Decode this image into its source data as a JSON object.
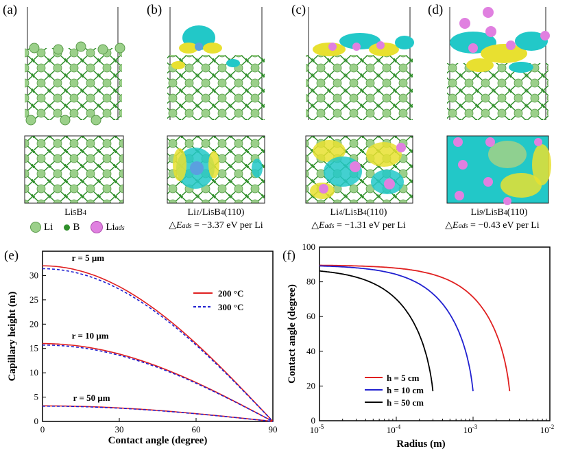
{
  "panels": {
    "a": {
      "label": "(a)",
      "caption": "Li5B4",
      "caption_parts": [
        "Li",
        "5",
        "B",
        "4"
      ]
    },
    "b": {
      "label": "(b)",
      "caption_parts": [
        "Li",
        "1",
        "/Li",
        "5",
        "B",
        "4",
        "(110)"
      ],
      "energy": "= −3.37 eV per Li"
    },
    "c": {
      "label": "(c)",
      "caption_parts": [
        "Li",
        "4",
        "/Li",
        "5",
        "B",
        "4",
        "(110)"
      ],
      "energy": "= −1.31 eV per Li"
    },
    "d": {
      "label": "(d)",
      "caption_parts": [
        "Li",
        "9",
        "/Li",
        "5",
        "B",
        "4",
        "(110)"
      ],
      "energy": "= −0.43 eV per Li"
    },
    "e": {
      "label": "(e)"
    },
    "f": {
      "label": "(f)"
    }
  },
  "energy_prefix": "△E",
  "energy_sub": "ads",
  "legend": {
    "li": "Li",
    "b": "B",
    "liads": "Li",
    "liads_sub": "ads"
  },
  "colors": {
    "li": "#9bd08a",
    "b": "#2f8f2a",
    "liads": "#e080e0",
    "cyan": "#22c8c8",
    "yellow": "#e8e030",
    "red": "#e02020",
    "blue": "#2020d0",
    "black": "#000000"
  },
  "chart_data": [
    {
      "id": "e",
      "type": "line",
      "xlabel": "Contact angle (degree)",
      "ylabel": "Capillary height (m)",
      "xlim": [
        0,
        90
      ],
      "ylim": [
        0,
        35
      ],
      "xticks": [
        0,
        30,
        60,
        90
      ],
      "yticks": [
        0,
        5,
        10,
        15,
        20,
        25,
        30
      ],
      "legend": [
        "200 °C",
        "300 °C"
      ],
      "annotations": [
        "r = 5 μm",
        "r = 10 μm",
        "r = 50 μm"
      ],
      "series": [
        {
          "name": "200 °C, r = 5 μm",
          "style": "solid",
          "color": "#e02020",
          "h0": 32.0
        },
        {
          "name": "300 °C, r = 5 μm",
          "style": "dashed",
          "color": "#2020d0",
          "h0": 31.4
        },
        {
          "name": "200 °C, r = 10 μm",
          "style": "solid",
          "color": "#e02020",
          "h0": 16.0
        },
        {
          "name": "300 °C, r = 10 μm",
          "style": "dashed",
          "color": "#2020d0",
          "h0": 15.7
        },
        {
          "name": "200 °C, r = 50 μm",
          "style": "solid",
          "color": "#e02020",
          "h0": 3.2
        },
        {
          "name": "300 °C, r = 50 μm",
          "style": "dashed",
          "color": "#2020d0",
          "h0": 3.14
        }
      ]
    },
    {
      "id": "f",
      "type": "line",
      "xlabel": "Radius (m)",
      "ylabel": "Contact angle (degree)",
      "xscale": "log",
      "xlim_exp": [
        -5,
        -2
      ],
      "ylim": [
        0,
        100
      ],
      "xtick_labels": [
        "10",
        "10",
        "10",
        "10"
      ],
      "xtick_exps": [
        "-5",
        "-4",
        "-3",
        "-2"
      ],
      "yticks": [
        0,
        20,
        40,
        60,
        80,
        100
      ],
      "legend": [
        "h = 5 cm",
        "h = 10 cm",
        "h = 50 cm"
      ],
      "series": [
        {
          "name": "h = 5 cm",
          "color": "#e02020",
          "rmax": 0.003,
          "theta0": 89.7
        },
        {
          "name": "h = 10 cm",
          "color": "#2020d0",
          "rmax": 0.001,
          "theta0": 89.7
        },
        {
          "name": "h = 50 cm",
          "color": "#000000",
          "rmax": 0.0003,
          "theta0": 88.0
        }
      ]
    }
  ]
}
